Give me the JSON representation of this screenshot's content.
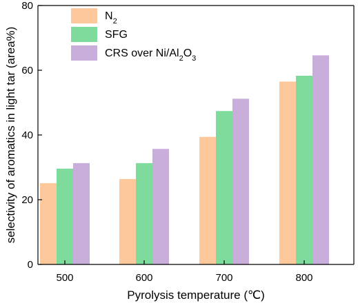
{
  "chart_data": {
    "type": "bar",
    "xlabel": "Pyrolysis temperature (℃)",
    "ylabel": "selectivity of aromatics in light tar (area%)",
    "ylim": [
      0,
      80
    ],
    "yticks": [
      0,
      20,
      40,
      60,
      80
    ],
    "categories": [
      "500",
      "600",
      "700",
      "800"
    ],
    "series": [
      {
        "name": "N",
        "name_sub": "2",
        "color": "#FDC89B",
        "values": [
          25.1,
          26.4,
          39.4,
          56.5
        ]
      },
      {
        "name": "SFG",
        "color": "#7FDB9B",
        "values": [
          29.6,
          31.3,
          47.4,
          58.3
        ]
      },
      {
        "name": "CRS over Ni/Al",
        "name_sub": "2",
        "name_mid": "O",
        "name_sub2": "3",
        "color": "#C9AEDC",
        "values": [
          31.3,
          35.7,
          51.2,
          64.6
        ]
      }
    ],
    "legend_position": "top-left",
    "grid": false
  }
}
